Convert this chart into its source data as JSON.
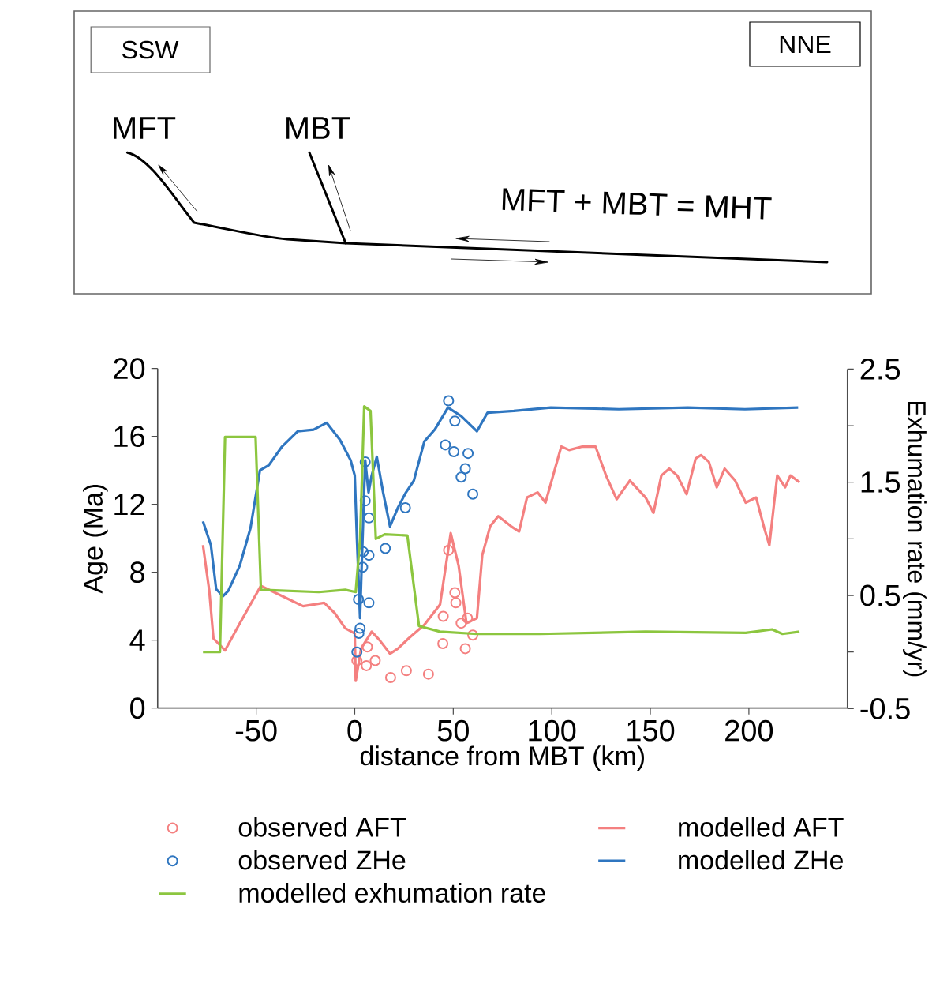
{
  "chart_data": {
    "type": "line",
    "xlabel": "distance from MBT (km)",
    "ylabel": "Age (Ma)",
    "y2label": "Exhumation rate (mm/yr)",
    "annotations": [
      "SSW",
      "NNE",
      "MFT",
      "MBT",
      "MFT + MBT = MHT"
    ],
    "xlim": [
      -100,
      250
    ],
    "xticks": [
      -50,
      0,
      50,
      100,
      150,
      200
    ],
    "ylim": [
      0,
      20
    ],
    "yticks": [
      0,
      4,
      8,
      12,
      16,
      20
    ],
    "y2lim": [
      -0.5,
      2.5
    ],
    "y2ticks": [
      -0.5,
      {
        "value": 0,
        "label": null
      },
      0.5,
      {
        "value": 1,
        "label": null
      },
      1.5,
      {
        "value": 2,
        "label": null
      },
      2.5
    ],
    "legend": "bottom",
    "series": [
      {
        "name": "observed AFT",
        "type": "scatter",
        "marker": "circle",
        "color": "#f48080",
        "x": [
          1.1,
          6.4,
          5.9,
          10.4,
          18.2,
          26.2,
          37.4,
          44.7,
          44.9,
          47.6,
          50.8,
          51.3,
          54,
          56.1,
          57.2,
          59.9
        ],
        "values": [
          2.8,
          3.6,
          2.5,
          2.8,
          1.8,
          2.2,
          2.0,
          3.8,
          5.4,
          9.3,
          6.8,
          6.2,
          5.0,
          3.5,
          5.3,
          4.3
        ]
      },
      {
        "name": "modelled AFT",
        "type": "line",
        "marker": "none",
        "line_style": "solid",
        "color": "#f48080",
        "x": [
          -77,
          -73.8,
          -71.7,
          -65.8,
          -58.3,
          -47.6,
          -36.9,
          -26.2,
          -15.5,
          -10.2,
          -4.8,
          0,
          0.5,
          3.2,
          8.6,
          12.6,
          17.9,
          21.9,
          27.3,
          35.3,
          43.3,
          48.7,
          52.7,
          56.7,
          62,
          64.7,
          68.7,
          72.8,
          79.4,
          83.4,
          87.4,
          92.8,
          96.8,
          104.8,
          108.8,
          115.5,
          122.2,
          127.5,
          132.9,
          139.6,
          147.6,
          151.6,
          155.6,
          159.6,
          163.6,
          168.4,
          173,
          175.7,
          179.7,
          183.7,
          187.7,
          193,
          198.4,
          203.7,
          207.8,
          210.4,
          214.4,
          218.4,
          221.1,
          225.7
        ],
        "values": [
          9.6,
          6.9,
          4.1,
          3.4,
          5.0,
          7.2,
          6.6,
          6.0,
          6.2,
          5.6,
          4.7,
          4.4,
          1.6,
          3.5,
          4.5,
          4.0,
          3.2,
          3.5,
          4.1,
          4.9,
          6.1,
          10.3,
          8.4,
          5.0,
          5.3,
          9.0,
          10.7,
          11.3,
          10.7,
          10.4,
          12.4,
          12.7,
          12.1,
          15.4,
          15.2,
          15.4,
          15.4,
          13.7,
          12.3,
          13.4,
          12.4,
          11.5,
          13.7,
          14.1,
          13.7,
          12.6,
          14.7,
          14.9,
          14.5,
          13.0,
          14.1,
          13.4,
          12.1,
          12.4,
          10.6,
          9.6,
          13.7,
          13.0,
          13.7,
          13.3
        ]
      },
      {
        "name": "observed ZHe",
        "type": "scatter",
        "marker": "circle",
        "color": "#2f76c0",
        "x": [
          1.1,
          2.1,
          2.7,
          1.9,
          4,
          4.3,
          5.3,
          5.3,
          7.2,
          7.2,
          7.2,
          15.5,
          25.7,
          47.6,
          50.8,
          46,
          50.3,
          57.5,
          56.1,
          54,
          59.9
        ],
        "values": [
          3.3,
          4.4,
          4.7,
          6.4,
          8.3,
          9.2,
          12.2,
          14.5,
          11.2,
          9.0,
          6.2,
          9.4,
          11.8,
          18.1,
          16.9,
          15.5,
          15.1,
          15.0,
          14.1,
          13.6,
          12.6
        ]
      },
      {
        "name": "modelled ZHe",
        "type": "line",
        "marker": "none",
        "line_style": "solid",
        "color": "#2f76c0",
        "x": [
          -77,
          -73,
          -70.3,
          -66.8,
          -64.2,
          -58.3,
          -52.9,
          -48.1,
          -43.6,
          -36.9,
          -28.9,
          -20.9,
          -14.2,
          -7.5,
          -2.1,
          0,
          1.1,
          2.7,
          3.7,
          5.3,
          7,
          8.6,
          11.2,
          14.4,
          17.9,
          21.9,
          26,
          30,
          35.3,
          40.6,
          47.3,
          54,
          62,
          67.4,
          80.7,
          99.5,
          134,
          169,
          198,
          225
        ],
        "values": [
          11.0,
          9.6,
          7.0,
          6.6,
          6.9,
          8.4,
          10.6,
          14.0,
          14.3,
          15.4,
          16.3,
          16.4,
          16.8,
          15.8,
          14.6,
          13.7,
          10.0,
          5.3,
          9.0,
          14.6,
          12.7,
          13.7,
          14.8,
          12.7,
          10.7,
          11.8,
          12.7,
          13.4,
          15.7,
          16.4,
          17.7,
          17.2,
          16.3,
          17.4,
          17.5,
          17.7,
          17.6,
          17.7,
          17.6,
          17.7
        ]
      },
      {
        "name": "modelled exhumation rate",
        "type": "line",
        "axis": "y2",
        "marker": "none",
        "line_style": "solid",
        "color": "#8cc63f",
        "x": [
          -77,
          -68.4,
          -65.8,
          -50.3,
          -47.6,
          -18.2,
          -4.8,
          0.5,
          2.7,
          4.8,
          8,
          10.7,
          15.2,
          26.7,
          32.6,
          43.3,
          62,
          67.4,
          94,
          147.6,
          198.4,
          211.8,
          217,
          225.7
        ],
        "values": [
          0.0,
          0.0,
          1.9,
          1.9,
          0.55,
          0.53,
          0.55,
          0.53,
          1.0,
          2.17,
          2.13,
          1.0,
          1.04,
          1.03,
          0.23,
          0.18,
          0.16,
          0.16,
          0.16,
          0.18,
          0.17,
          0.2,
          0.16,
          0.18
        ]
      }
    ]
  }
}
